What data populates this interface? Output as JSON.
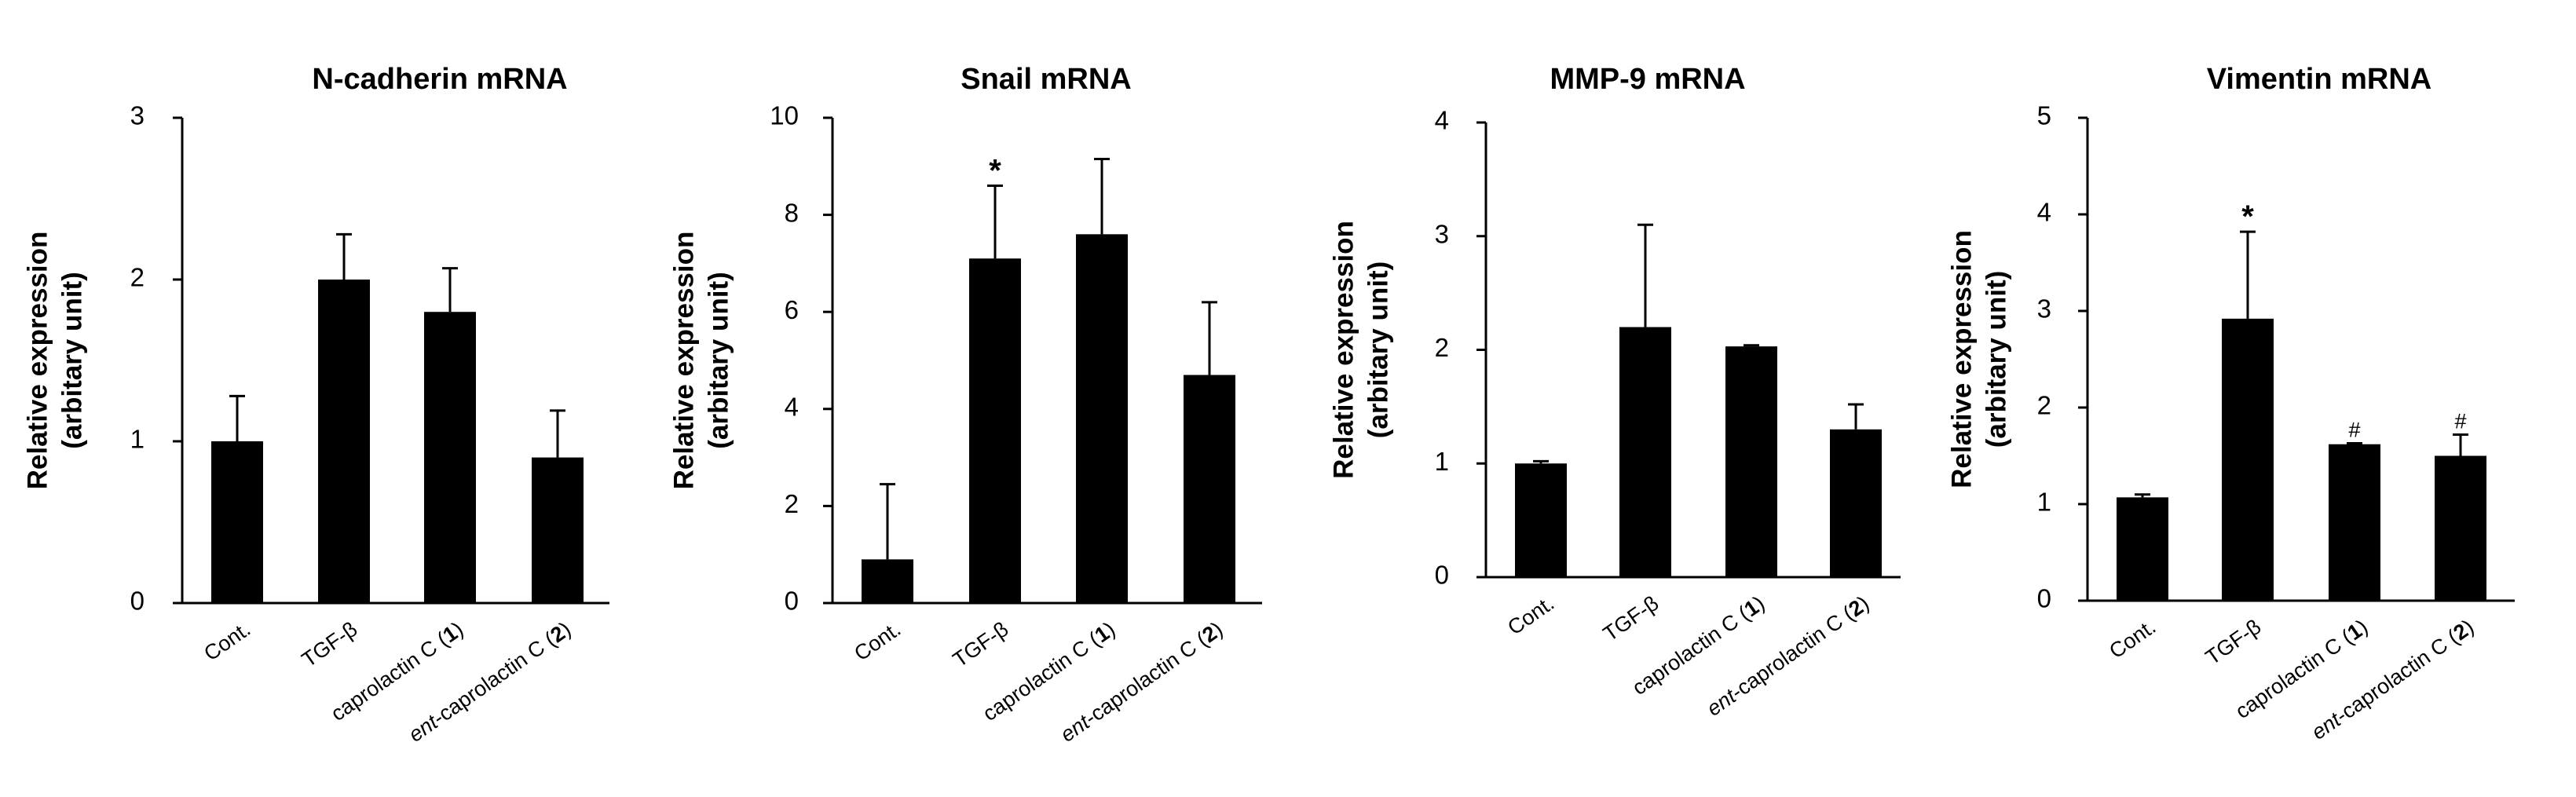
{
  "chart_data": [
    {
      "type": "bar",
      "title": "N-cadherin mRNA",
      "ylabel": [
        "Relative expression",
        "(arbitary unit)"
      ],
      "ylim": [
        0,
        3
      ],
      "yticks": [
        0,
        1,
        2,
        3
      ],
      "categories": [
        "Cont.",
        "TGF-β",
        "caprolactin C (1)",
        "ent-caprolactin C (2)"
      ],
      "values": [
        1.0,
        2.0,
        1.8,
        0.9
      ],
      "errors": [
        0.28,
        0.28,
        0.27,
        0.29
      ],
      "annotations": [
        "",
        "",
        "",
        ""
      ]
    },
    {
      "type": "bar",
      "title": "Snail mRNA",
      "ylabel": [
        "Relative expression",
        "(arbitary unit)"
      ],
      "ylim": [
        0,
        10
      ],
      "yticks": [
        0,
        2,
        4,
        6,
        8,
        10
      ],
      "categories": [
        "Cont.",
        "TGF-β",
        "caprolactin C (1)",
        "ent-caprolactin C (2)"
      ],
      "values": [
        0.9,
        7.1,
        7.6,
        4.7
      ],
      "errors": [
        1.55,
        1.5,
        1.55,
        1.5
      ],
      "annotations": [
        "",
        "*",
        "",
        ""
      ]
    },
    {
      "type": "bar",
      "title": "MMP-9  mRNA",
      "ylabel": [
        "Relative expression",
        "(arbitary  unit)"
      ],
      "ylim": [
        0,
        4
      ],
      "yticks": [
        0,
        1,
        2,
        3,
        4
      ],
      "categories": [
        "Cont.",
        "TGF-β",
        "caprolactin C (1)",
        "ent-caprolactin C (2)"
      ],
      "values": [
        1.0,
        2.2,
        2.03,
        1.3
      ],
      "errors": [
        0.02,
        0.9,
        0.01,
        0.22
      ],
      "annotations": [
        "",
        "",
        "",
        ""
      ]
    },
    {
      "type": "bar",
      "title": "Vimentin mRNA",
      "ylabel": [
        "Relative expression",
        "(arbitary  unit)"
      ],
      "ylim": [
        0,
        5
      ],
      "yticks": [
        0,
        1,
        2,
        3,
        4,
        5
      ],
      "categories": [
        "Cont.",
        "TGF-β",
        "caprolactin C (1)",
        "ent-caprolactin C (2)"
      ],
      "values": [
        1.07,
        2.92,
        1.62,
        1.5
      ],
      "errors": [
        0.03,
        0.9,
        0.01,
        0.22
      ],
      "annotations": [
        "",
        "*",
        "#",
        "#"
      ]
    }
  ]
}
